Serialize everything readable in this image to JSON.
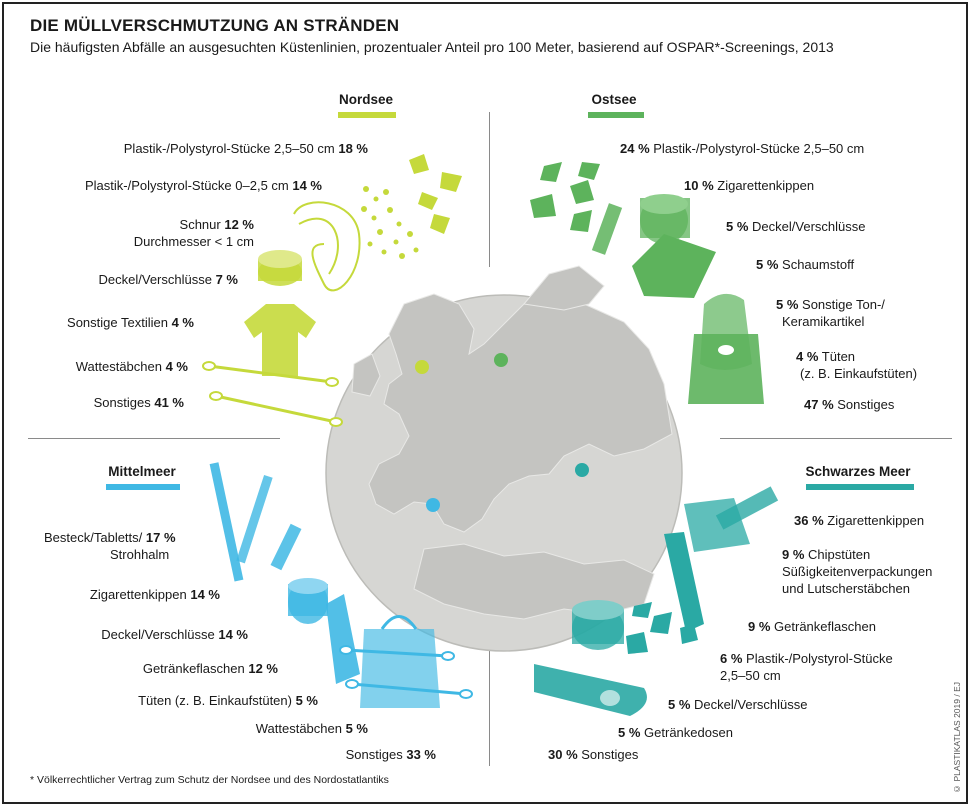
{
  "header": {
    "title": "DIE MÜLLVERSCHMUTZUNG AN STRÄNDEN",
    "subtitle": "Die häufigsten Abfälle an ausgesuchten Küstenlinien, prozentualer Anteil pro 100 Meter, basierend auf OSPAR*-Screenings, 2013"
  },
  "colors": {
    "nordsee": "#c5d93b",
    "ostsee": "#5db35c",
    "mittelmeer": "#3fb8e4",
    "schwarzes_meer": "#2aa9a4",
    "globe": "#d6d6d3",
    "land": "#c4c4c1"
  },
  "regions": {
    "nordsee": {
      "name": "Nordsee",
      "items": [
        {
          "value": "18 %",
          "label": "Plastik-/Polystyrol-Stücke 2,5–50 cm"
        },
        {
          "value": "14 %",
          "label": "Plastik-/Polystyrol-Stücke 0–2,5 cm"
        },
        {
          "value": "12 %",
          "label": "Schnur",
          "label2": "Durchmesser < 1 cm"
        },
        {
          "value": "7 %",
          "label": "Deckel/Verschlüsse"
        },
        {
          "value": "4 %",
          "label": "Sonstige Textilien"
        },
        {
          "value": "4 %",
          "label": "Wattestäbchen"
        },
        {
          "value": "41 %",
          "label": "Sonstiges"
        }
      ]
    },
    "ostsee": {
      "name": "Ostsee",
      "items": [
        {
          "value": "24 %",
          "label": "Plastik-/Polystyrol-Stücke 2,5–50 cm"
        },
        {
          "value": "10 %",
          "label": "Zigarettenkippen"
        },
        {
          "value": "5 %",
          "label": "Deckel/Verschlüsse"
        },
        {
          "value": "5 %",
          "label": "Schaumstoff"
        },
        {
          "value": "5 %",
          "label": "Sonstige Ton-/",
          "label2": "Keramikartikel"
        },
        {
          "value": "4 %",
          "label": "Tüten",
          "label2": "(z. B. Einkaufstüten)"
        },
        {
          "value": "47 %",
          "label": "Sonstiges"
        }
      ]
    },
    "mittelmeer": {
      "name": "Mittelmeer",
      "items": [
        {
          "value": "17 %",
          "label": "Besteck/Tabletts/",
          "label2": "Strohhalm"
        },
        {
          "value": "14 %",
          "label": "Zigarettenkippen"
        },
        {
          "value": "14 %",
          "label": "Deckel/Verschlüsse"
        },
        {
          "value": "12 %",
          "label": "Getränkeflaschen"
        },
        {
          "value": "5 %",
          "label": "Tüten (z. B. Einkaufstüten)"
        },
        {
          "value": "5 %",
          "label": "Wattestäbchen"
        },
        {
          "value": "33 %",
          "label": "Sonstiges"
        }
      ]
    },
    "schwarzes_meer": {
      "name": "Schwarzes Meer",
      "items": [
        {
          "value": "36 %",
          "label": "Zigarettenkippen"
        },
        {
          "value": "9 %",
          "label": "Chipstüten",
          "label2": "Süßigkeitenverpackungen",
          "label3": "und Lutscherstäbchen"
        },
        {
          "value": "9 %",
          "label": "Getränkeflaschen"
        },
        {
          "value": "6 %",
          "label": "Plastik-/Polystyrol-Stücke",
          "label2": "2,5–50 cm"
        },
        {
          "value": "5 %",
          "label": "Deckel/Verschlüsse"
        },
        {
          "value": "5 %",
          "label": "Getränkedosen"
        },
        {
          "value": "30 %",
          "label": "Sonstiges"
        }
      ]
    }
  },
  "footnote": "* Völkerrechtlicher Vertrag zum Schutz der Nordsee und des Nordostatlantiks",
  "credit": "© PLASTIKATLAS 2019 / EJ"
}
